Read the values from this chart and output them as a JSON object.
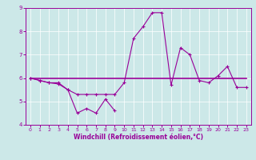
{
  "bg_color": "#cce8e8",
  "line_color": "#990099",
  "x_data": [
    0,
    1,
    2,
    3,
    4,
    5,
    6,
    7,
    8,
    9,
    10,
    11,
    12,
    13,
    14,
    15,
    16,
    17,
    18,
    19,
    20,
    21,
    22,
    23
  ],
  "series1_x": [
    0,
    1,
    2,
    3,
    4,
    5,
    6,
    7,
    8,
    9
  ],
  "series1_y": [
    6.0,
    5.9,
    5.8,
    5.8,
    5.5,
    4.5,
    4.7,
    4.5,
    5.1,
    4.6
  ],
  "series2_y": [
    6.0,
    5.9,
    5.8,
    5.75,
    5.5,
    5.3,
    5.3,
    5.3,
    5.3,
    5.3,
    5.8,
    7.7,
    8.2,
    8.8,
    8.8,
    5.7,
    7.3,
    7.0,
    5.9,
    5.8,
    6.1,
    6.5,
    5.6,
    5.6
  ],
  "series3_y": [
    6.0,
    6.0,
    6.0,
    6.0,
    6.0,
    6.0,
    6.0,
    6.0,
    6.0,
    6.0,
    6.0,
    6.0,
    6.0,
    6.0,
    6.0,
    6.0,
    6.0,
    6.0,
    6.0,
    6.0,
    6.0,
    6.0,
    6.0,
    6.0
  ],
  "ylim": [
    4,
    9
  ],
  "xlim": [
    -0.5,
    23.5
  ],
  "yticks": [
    4,
    5,
    6,
    7,
    8,
    9
  ],
  "xticks": [
    0,
    1,
    2,
    3,
    4,
    5,
    6,
    7,
    8,
    9,
    10,
    11,
    12,
    13,
    14,
    15,
    16,
    17,
    18,
    19,
    20,
    21,
    22,
    23
  ],
  "xlabel": "Windchill (Refroidissement éolien,°C)",
  "xlabel_fontsize": 5.5,
  "tick_fontsize": 5,
  "marker": "+",
  "markersize": 3,
  "linewidth": 0.8,
  "refline_linewidth": 1.2,
  "grid_color": "#ffffff",
  "grid_linewidth": 0.5,
  "spine_linewidth": 0.7
}
